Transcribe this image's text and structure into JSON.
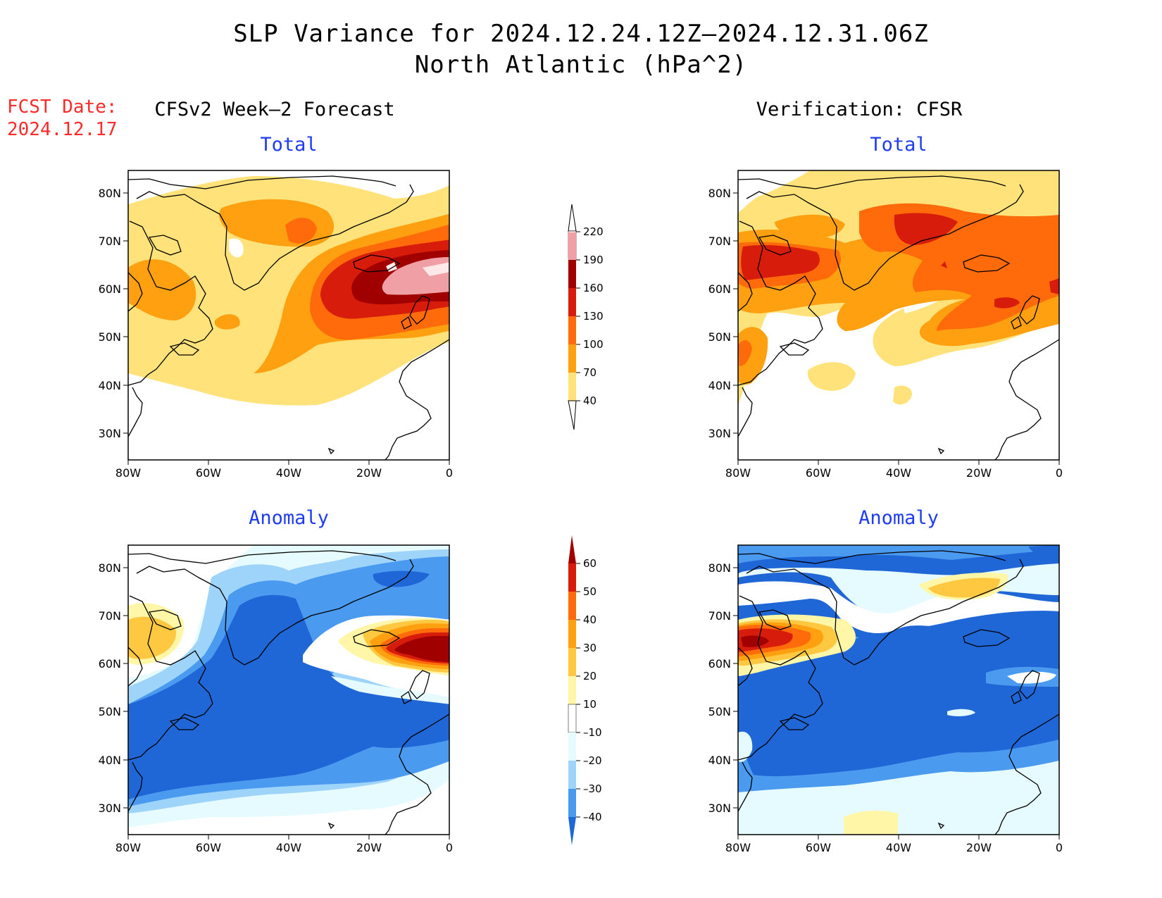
{
  "header": {
    "title_line1": "SLP Variance for 2024.12.24.12Z–2024.12.31.06Z",
    "title_line2": "North Atlantic (hPa^2)",
    "fcst_label": "FCST Date:",
    "fcst_date": "2024.12.17"
  },
  "columns": {
    "left": "CFSv2 Week–2 Forecast",
    "right": "Verification: CFSR"
  },
  "panels": {
    "top_left": "Total",
    "top_right": "Total",
    "bottom_left": "Anomaly",
    "bottom_right": "Anomaly"
  },
  "axes": {
    "lat_labels": [
      "80N",
      "70N",
      "60N",
      "50N",
      "40N",
      "30N"
    ],
    "lon_labels": [
      "80W",
      "60W",
      "40W",
      "20W",
      "0"
    ]
  },
  "colorbars": {
    "total": {
      "labels": [
        "220",
        "190",
        "160",
        "130",
        "100",
        "70",
        "40"
      ],
      "colors": [
        "#ffe8e8",
        "#f0a0a5",
        "#a00000",
        "#d81c0c",
        "#ff6a0a",
        "#ffa010",
        "#ffe27a"
      ]
    },
    "anomaly": {
      "labels": [
        "60",
        "50",
        "40",
        "30",
        "20",
        "10",
        "–10",
        "–20",
        "–30",
        "–40"
      ],
      "colors": [
        "#a00000",
        "#d81c0c",
        "#ff6a0a",
        "#ffa010",
        "#ffc840",
        "#fff6a8",
        "#ffffff",
        "#e6fbff",
        "#9ed4fa",
        "#4a9af0",
        "#1f66d6"
      ]
    }
  }
}
